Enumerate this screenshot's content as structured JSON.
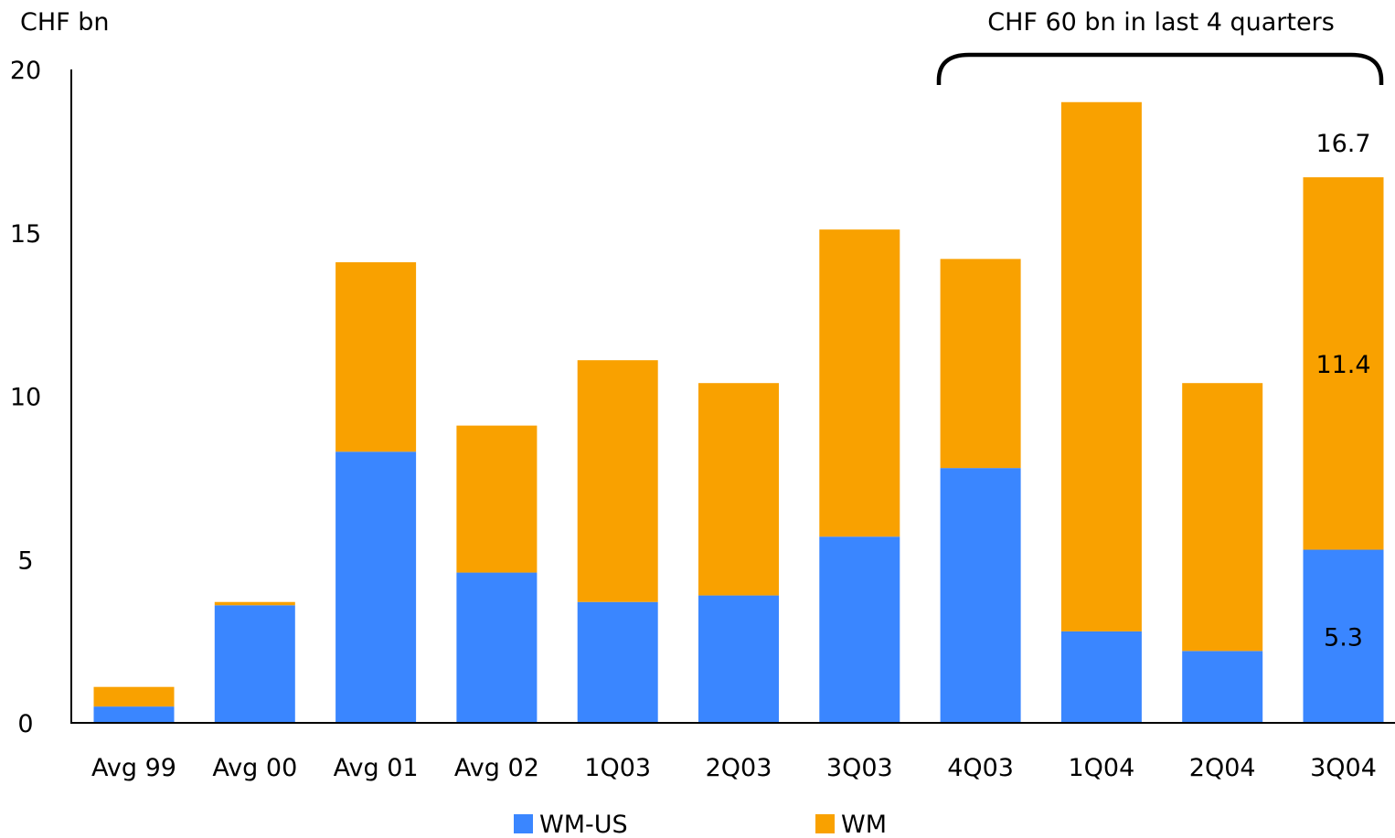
{
  "chart_data": {
    "type": "bar",
    "stacked": true,
    "title": "",
    "unit_label": "CHF bn",
    "xlabel": "",
    "ylabel": "",
    "ylim": [
      0,
      20
    ],
    "yticks": [
      "0",
      "5",
      "10",
      "15",
      "20"
    ],
    "grid": false,
    "legend_position": "bottom",
    "categories": [
      "Avg 99",
      "Avg 00",
      "Avg 01",
      "Avg 02",
      "1Q03",
      "2Q03",
      "3Q03",
      "4Q03",
      "1Q04",
      "2Q04",
      "3Q04"
    ],
    "series": [
      {
        "name": "WM-US",
        "color": "#3a86ff",
        "values": [
          0.5,
          3.6,
          8.3,
          4.6,
          3.7,
          3.9,
          5.7,
          7.8,
          2.8,
          2.2,
          5.3
        ]
      },
      {
        "name": "WM",
        "color": "#f9a100",
        "values": [
          0.6,
          0.1,
          5.8,
          4.5,
          7.4,
          6.5,
          9.4,
          6.4,
          16.2,
          8.2,
          11.4
        ]
      }
    ],
    "data_labels": [
      {
        "category": "3Q04",
        "series": "WM-US",
        "text": "5.3"
      },
      {
        "category": "3Q04",
        "series": "WM",
        "text": "11.4"
      },
      {
        "category": "3Q04",
        "series": "total",
        "text": "16.7"
      }
    ],
    "annotation": {
      "text": "CHF 60 bn in last 4 quarters",
      "from_category": "4Q03",
      "to_category": "3Q04"
    }
  }
}
